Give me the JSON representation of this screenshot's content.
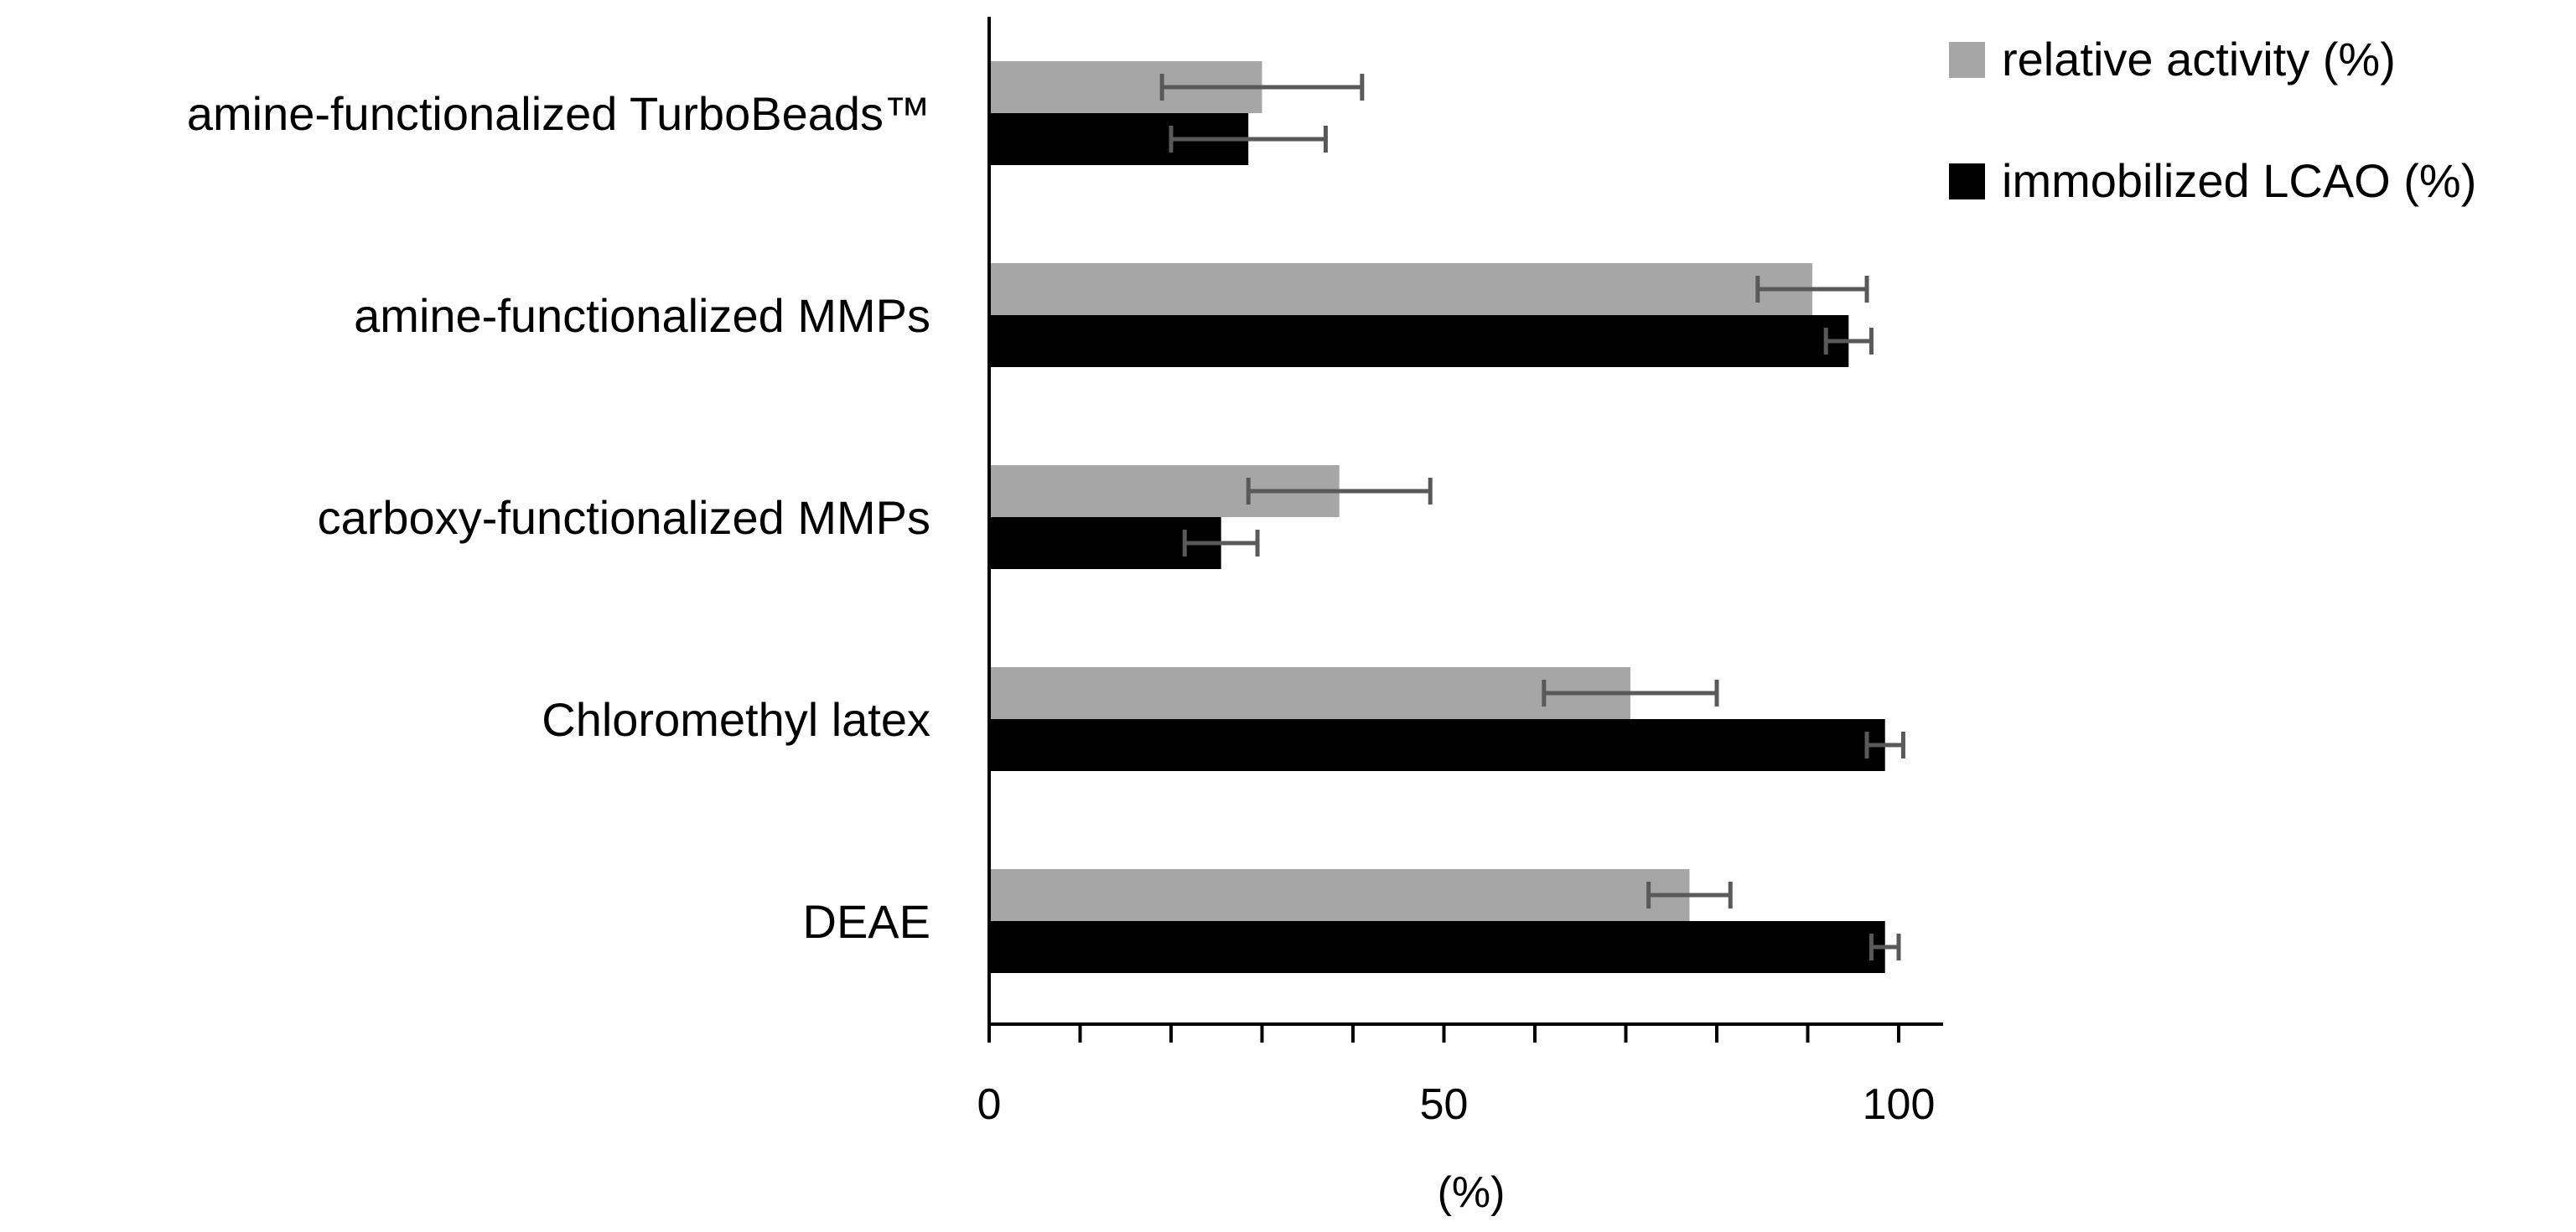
{
  "chart_data": {
    "type": "bar",
    "orientation": "horizontal",
    "title": "",
    "xlabel": "(%)",
    "ylabel": "",
    "xlim": [
      0,
      105
    ],
    "xticks": [
      0,
      50,
      100
    ],
    "grid": false,
    "legend_position": "top-right",
    "categories": [
      "amine-functionalized TurboBeads™",
      "amine-functionalized MMPs",
      "carboxy-functionalized MMPs",
      "Chloromethyl latex",
      "DEAE"
    ],
    "series": [
      {
        "name": "relative activity (%)",
        "color": "#a6a6a6",
        "values": [
          30,
          90.5,
          38.5,
          70.5,
          77
        ],
        "errors": [
          11,
          6,
          10,
          9.5,
          4.5
        ]
      },
      {
        "name": "immobilized LCAO (%)",
        "color": "#000000",
        "values": [
          28.5,
          94.5,
          25.5,
          98.5,
          98.5
        ],
        "errors": [
          8.5,
          2.5,
          4,
          2,
          1.5
        ]
      }
    ],
    "error_bar_color": "#595959"
  }
}
